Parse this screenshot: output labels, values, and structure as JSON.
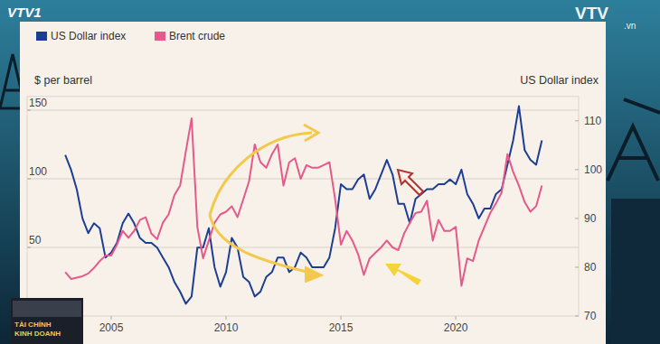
{
  "chart_data": {
    "type": "line",
    "y_label": "$ per barrel",
    "y2_label": "US Dollar index",
    "x": [
      2003,
      2003.25,
      2003.5,
      2003.75,
      2004,
      2004.25,
      2004.5,
      2004.75,
      2005,
      2005.25,
      2005.5,
      2005.75,
      2006,
      2006.25,
      2006.5,
      2006.75,
      2007,
      2007.25,
      2007.5,
      2007.75,
      2008,
      2008.25,
      2008.5,
      2008.75,
      2009,
      2009.25,
      2009.5,
      2009.75,
      2010,
      2010.25,
      2010.5,
      2010.75,
      2011,
      2011.25,
      2011.5,
      2011.75,
      2012,
      2012.25,
      2012.5,
      2012.75,
      2013,
      2013.25,
      2013.5,
      2013.75,
      2014,
      2014.25,
      2014.5,
      2014.75,
      2015,
      2015.25,
      2015.5,
      2015.75,
      2016,
      2016.25,
      2016.5,
      2016.75,
      2017,
      2017.25,
      2017.5,
      2017.75,
      2018,
      2018.25,
      2018.5,
      2018.75,
      2019,
      2019.25,
      2019.5,
      2019.75,
      2020,
      2020.25,
      2020.5,
      2020.75,
      2021,
      2021.25,
      2021.5,
      2021.75,
      2022,
      2022.25,
      2022.5,
      2022.75,
      2023,
      2023.25,
      2023.5,
      2023.75
    ],
    "series": [
      {
        "name": "US Dollar index",
        "color": "#1c3f93",
        "axis": "y2",
        "values": [
          103,
          100,
          96,
          90,
          87,
          89,
          88,
          82,
          83,
          85,
          89,
          91,
          89,
          86,
          85,
          85,
          84,
          82,
          80,
          77,
          75,
          72.5,
          74,
          84,
          84,
          88,
          80,
          76,
          79,
          86,
          84,
          78,
          77,
          74,
          75,
          78,
          79,
          82,
          82,
          79,
          80,
          83,
          82,
          80,
          80,
          80,
          82,
          88,
          97,
          96,
          96,
          98,
          99,
          94,
          96,
          99,
          102,
          99,
          93,
          93,
          89,
          94,
          95,
          96,
          96,
          97,
          97,
          98,
          97,
          100,
          95,
          93,
          90,
          92,
          92,
          95,
          96,
          101,
          106,
          113,
          104,
          102,
          101,
          106
        ]
      },
      {
        "name": "Brent crude",
        "color": "#e5598b",
        "values": [
          32,
          27,
          28,
          29,
          31,
          35,
          40,
          44,
          44,
          52,
          62,
          57,
          62,
          70,
          72,
          60,
          56,
          68,
          74,
          88,
          95,
          120,
          144,
          65,
          42,
          55,
          68,
          74,
          76,
          80,
          72,
          85,
          98,
          125,
          112,
          108,
          118,
          125,
          95,
          112,
          115,
          100,
          110,
          108,
          108,
          110,
          112,
          85,
          52,
          62,
          55,
          45,
          30,
          42,
          46,
          50,
          55,
          50,
          48,
          60,
          68,
          75,
          76,
          84,
          55,
          70,
          62,
          62,
          65,
          22,
          42,
          40,
          55,
          65,
          75,
          82,
          90,
          118,
          105,
          95,
          83,
          76,
          80,
          95
        ]
      }
    ],
    "xlim": [
      2001.34,
      2025.35
    ],
    "xticks": [
      2005,
      2010,
      2015,
      2020
    ],
    "ylim": [
      0,
      160
    ],
    "yticks": [
      50,
      100,
      150
    ],
    "y2lim": [
      70,
      115
    ],
    "y2ticks": [
      70,
      80,
      90,
      100,
      110
    ],
    "grid": true,
    "legend": "top-left"
  },
  "overlay": {
    "channel_logo": "VTV1",
    "watermark": "VTV",
    "watermark_suffix": ".vn",
    "program": [
      "TÀI CHÍNH",
      "KINH DOANH"
    ]
  }
}
